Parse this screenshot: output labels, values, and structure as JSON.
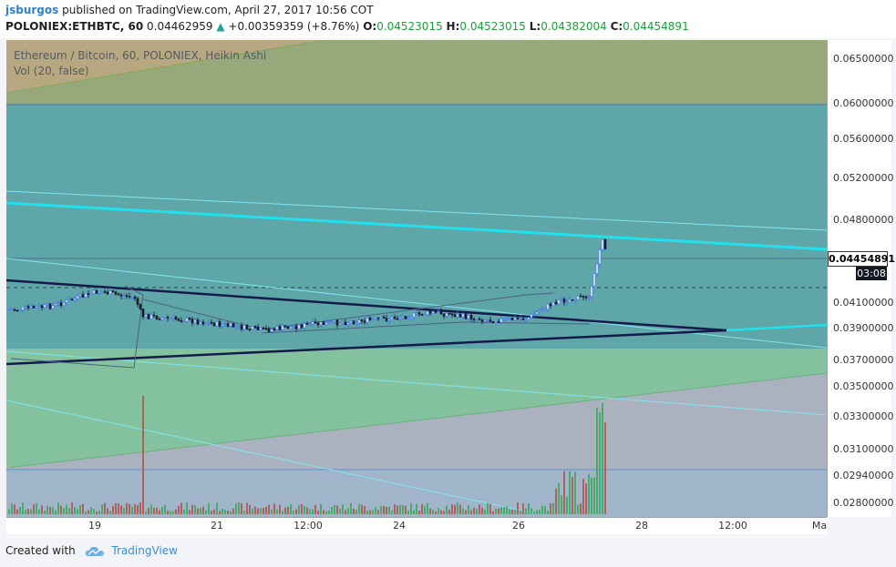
{
  "header": {
    "author": "jsburgos",
    "published_text": "published on TradingView.com, April 27, 2017 10:56 COT",
    "symbol": "POLONIEX:ETHBTC, 60",
    "last": "0.04462959",
    "change_arrow": "▲",
    "change": "+0.00359359 (+8.76%)",
    "o_label": "O:",
    "o_value": "0.04523015",
    "h_label": "H:",
    "h_value": "0.04523015",
    "l_label": "L:",
    "l_value": "0.04382004",
    "c_label": "C:",
    "c_value": "0.04454891"
  },
  "legend": {
    "title": "Ethereum / Bitcoin, 60, POLONIEX, Heikin Ashi",
    "vol": "Vol (20, false)"
  },
  "price_axis": {
    "ticks": [
      "0.06500000",
      "0.06000000",
      "0.05600000",
      "0.05200000",
      "0.04800000",
      "0.04100000",
      "0.03900000",
      "0.03700000",
      "0.03500000",
      "0.03300000",
      "0.03100000",
      "0.02940000",
      "0.02800000"
    ],
    "last_price": "0.04454891",
    "countdown": "03:08"
  },
  "time_axis": {
    "ticks": [
      "19",
      "21",
      "12:00",
      "24",
      "26",
      "28",
      "12:00",
      "Ma"
    ]
  },
  "footer": {
    "created_with": "Created with",
    "brand": "TradingView"
  },
  "colors": {
    "bull_candle": "#3b6cf5",
    "bear_candle": "#1a1a2e",
    "trendline_cyan": "#22e1ee",
    "trendline_navy": "#151a4a",
    "zone_teal": "#5fa7a8",
    "zone_green": "#7fc19a",
    "zone_olive": "#98a878",
    "zone_grey": "#aab3bf",
    "volume_red": "#b2524c",
    "volume_green": "#3aa85c"
  }
}
